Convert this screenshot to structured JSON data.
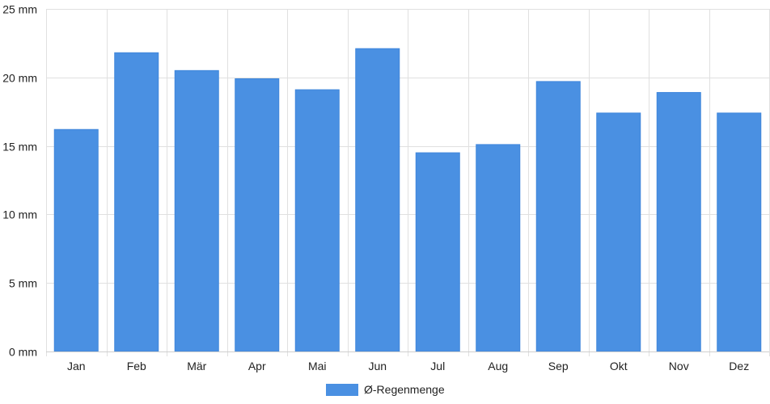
{
  "chart_data": {
    "type": "bar",
    "categories": [
      "Jan",
      "Feb",
      "Mär",
      "Apr",
      "Mai",
      "Jun",
      "Jul",
      "Aug",
      "Sep",
      "Okt",
      "Nov",
      "Dez"
    ],
    "series": [
      {
        "name": "Ø-Regenmenge",
        "values": [
          16.2,
          21.8,
          20.5,
          19.9,
          19.1,
          22.1,
          14.5,
          15.1,
          19.7,
          17.4,
          18.9,
          17.4
        ],
        "color": "#4a90e2"
      }
    ],
    "ylim": [
      0,
      25
    ],
    "yticks": [
      0,
      5,
      10,
      15,
      20,
      25
    ],
    "y_unit": "mm",
    "ytick_labels": [
      "0 mm",
      "5 mm",
      "10 mm",
      "15 mm",
      "20 mm",
      "25 mm"
    ],
    "grid": true,
    "grid_color": "#e0e0e0",
    "legend_position": "bottom-center",
    "title": "",
    "xlabel": "",
    "ylabel": ""
  }
}
